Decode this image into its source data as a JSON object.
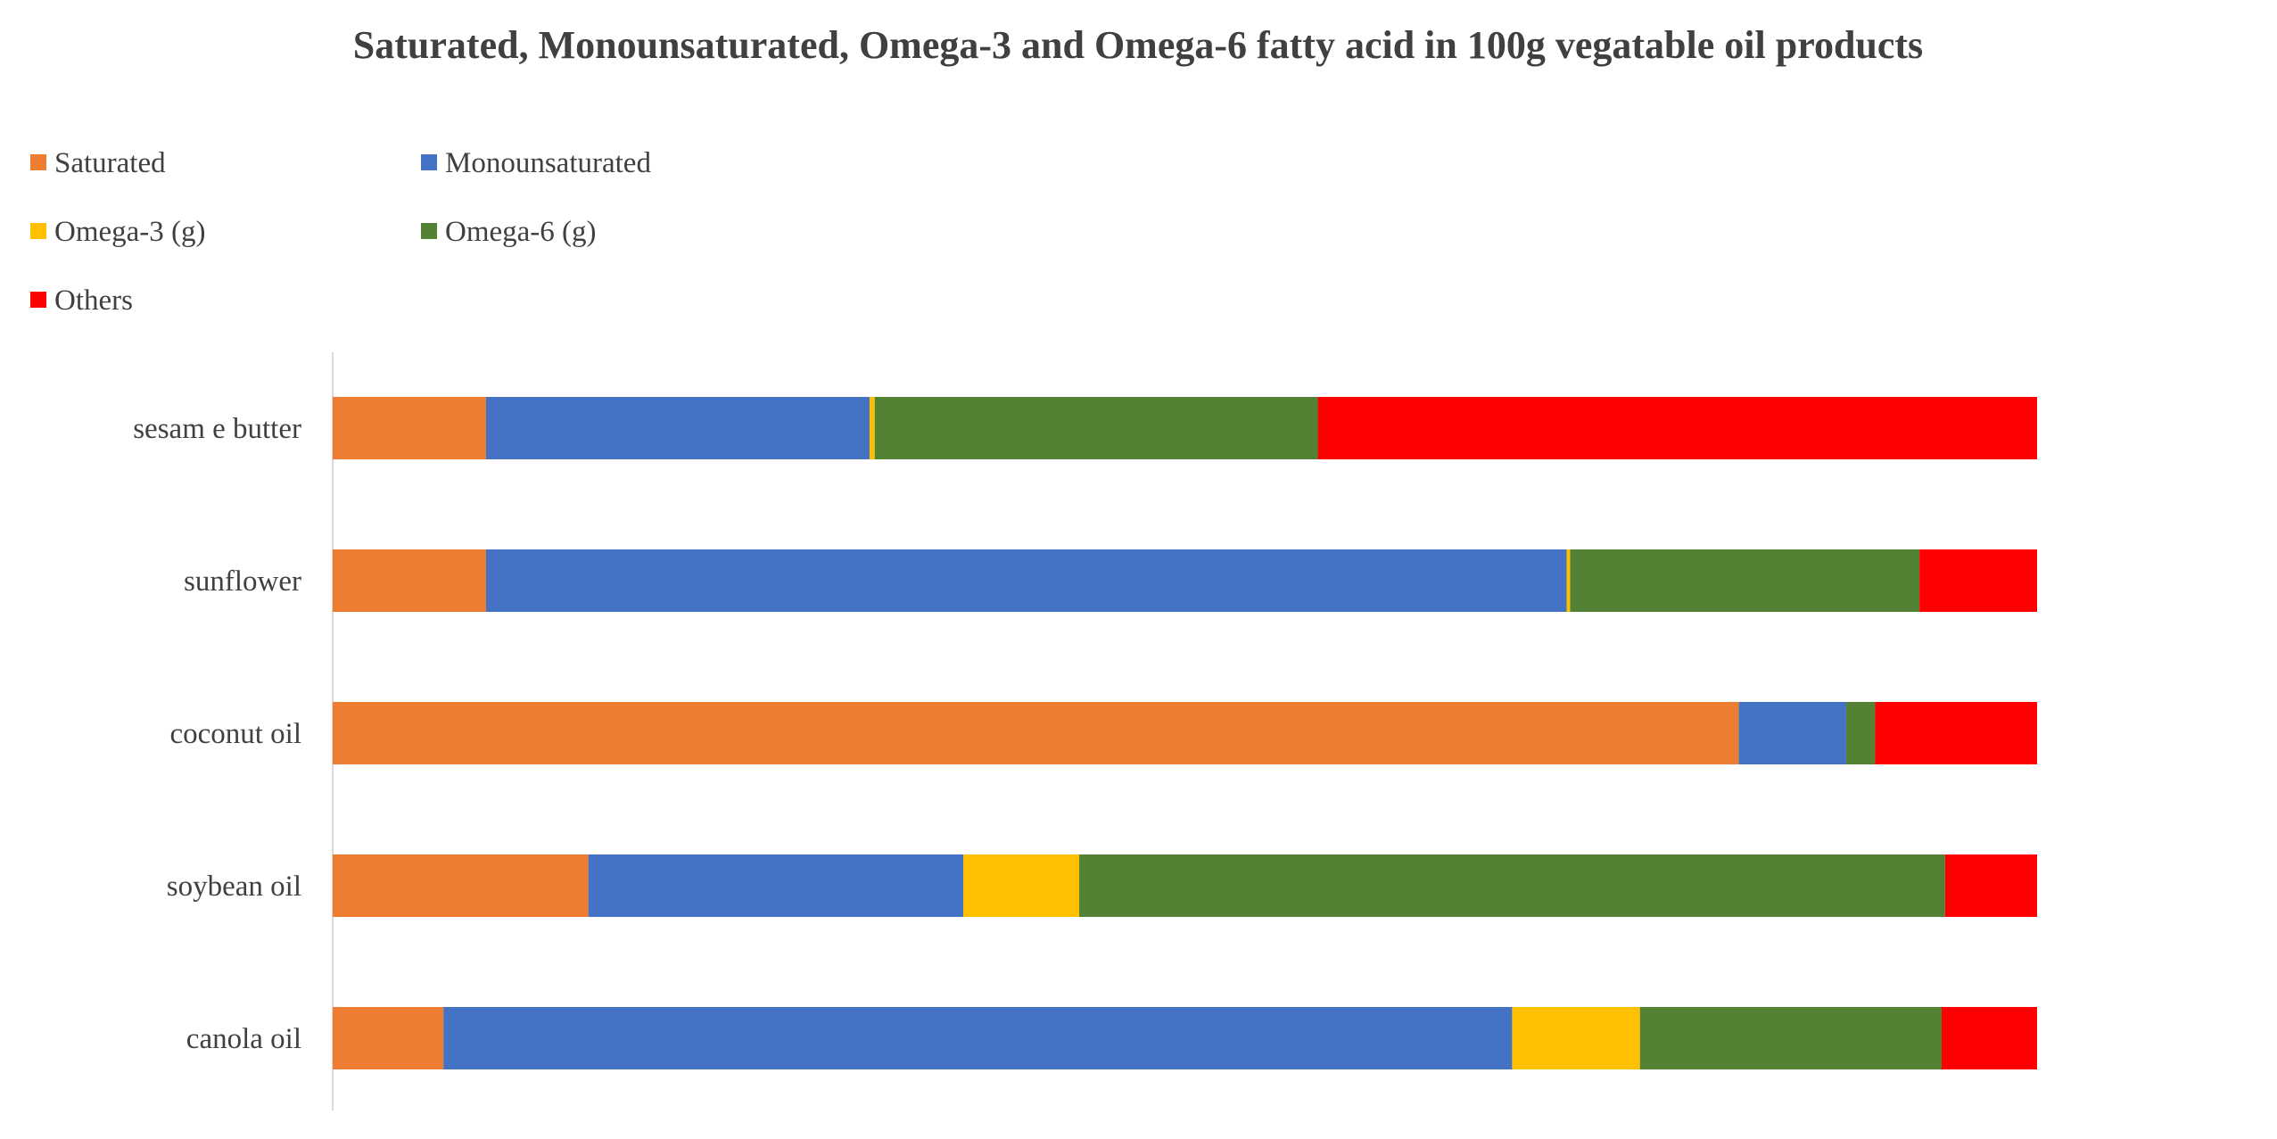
{
  "chart_data": {
    "type": "bar",
    "orientation": "horizontal",
    "stacked": true,
    "title": "Saturated, Monounsaturated, Omega-3 and Omega-6 fatty acid in 100g vegatable oil products",
    "xlabel": "",
    "ylabel": "",
    "xlim": [
      0,
      100
    ],
    "grid": false,
    "legend_position": "top-left",
    "categories": [
      "sesam e butter",
      "sunflower",
      "coconut oil",
      "soybean oil",
      "canola oil"
    ],
    "series": [
      {
        "name": "Saturated",
        "color": "#ED7D31",
        "values": [
          9,
          9,
          82.5,
          15,
          6.5
        ]
      },
      {
        "name": "Monounsaturated",
        "color": "#4472C4",
        "values": [
          22.5,
          63.4,
          6.3,
          22,
          62.7
        ]
      },
      {
        "name": "Omega-3 (g)",
        "color": "#FFC000",
        "values": [
          0.3,
          0.2,
          0,
          6.8,
          7.5
        ]
      },
      {
        "name": "Omega-6 (g)",
        "color": "#548235",
        "values": [
          26,
          20.5,
          1.7,
          50.8,
          17.7
        ]
      },
      {
        "name": "Others",
        "color": "#FF0000",
        "values": [
          42.2,
          6.9,
          9.5,
          5.4,
          5.6
        ]
      }
    ]
  }
}
